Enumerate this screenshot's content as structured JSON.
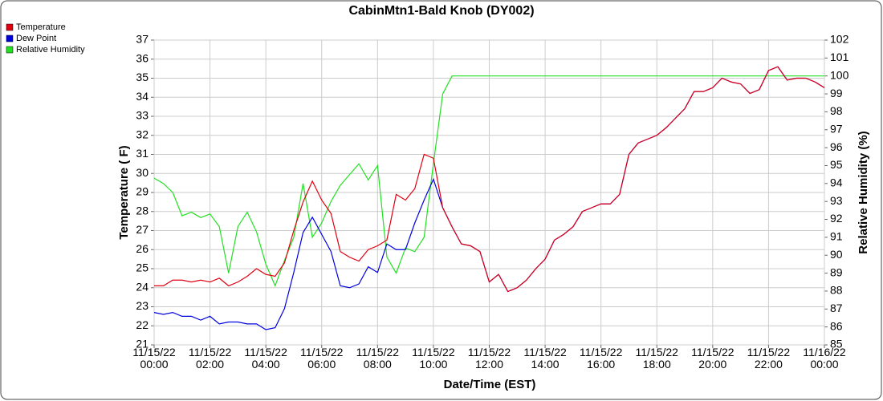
{
  "chart_data": {
    "type": "line",
    "title": "CabinMtn1-Bald Knob (DY002)",
    "x_label": "Date/Time (EST)",
    "y_label": "Temperature ( F)",
    "y2_label": "Relative Humidity (%)",
    "x": [
      0,
      20,
      40,
      60,
      80,
      100,
      120,
      140,
      160,
      180,
      200,
      220,
      240,
      260,
      280,
      300,
      320,
      340,
      360,
      380,
      400,
      420,
      440,
      460,
      480,
      500,
      520,
      540,
      560,
      580,
      600,
      620,
      640,
      660,
      680,
      700,
      720,
      740,
      760,
      780,
      800,
      820,
      840,
      860,
      880,
      900,
      920,
      940,
      960,
      980,
      1000,
      1020,
      1040,
      1060,
      1080,
      1100,
      1120,
      1140,
      1160,
      1180,
      1200,
      1220,
      1240,
      1260,
      1280,
      1300,
      1320,
      1340,
      1360,
      1380,
      1400,
      1420,
      1440
    ],
    "xlim": [
      0,
      1440
    ],
    "xticks": [
      {
        "value": 0,
        "label": "11/15/22 00:00"
      },
      {
        "value": 120,
        "label": "11/15/22 02:00"
      },
      {
        "value": 240,
        "label": "11/15/22 04:00"
      },
      {
        "value": 360,
        "label": "11/15/22 06:00"
      },
      {
        "value": 480,
        "label": "11/15/22 08:00"
      },
      {
        "value": 600,
        "label": "11/15/22 10:00"
      },
      {
        "value": 720,
        "label": "11/15/22 12:00"
      },
      {
        "value": 840,
        "label": "11/15/22 14:00"
      },
      {
        "value": 960,
        "label": "11/15/22 16:00"
      },
      {
        "value": 1080,
        "label": "11/15/22 18:00"
      },
      {
        "value": 1200,
        "label": "11/15/22 20:00"
      },
      {
        "value": 1320,
        "label": "11/15/22 22:00"
      },
      {
        "value": 1440,
        "label": "11/16/22 00:00"
      }
    ],
    "ylim": [
      21,
      37
    ],
    "yticks": [
      21,
      22,
      23,
      24,
      25,
      26,
      27,
      28,
      29,
      30,
      31,
      32,
      33,
      34,
      35,
      36,
      37
    ],
    "y2lim": [
      85,
      102
    ],
    "y2ticks": [
      85,
      86,
      87,
      88,
      89,
      90,
      91,
      92,
      93,
      94,
      95,
      96,
      97,
      98,
      99,
      100,
      101,
      102
    ],
    "grid": true,
    "legend": "top-left",
    "series": [
      {
        "name": "Temperature",
        "color": "#e00010",
        "values": [
          24.1,
          24.1,
          24.4,
          24.4,
          24.3,
          24.4,
          24.3,
          24.5,
          24.1,
          24.3,
          24.6,
          25.0,
          24.7,
          24.6,
          25.3,
          27.0,
          28.5,
          29.6,
          28.6,
          27.9,
          25.9,
          25.6,
          25.4,
          26.0,
          26.2,
          26.5,
          28.9,
          28.6,
          29.2,
          31.0,
          30.8,
          28.2,
          27.2,
          26.3,
          26.2,
          25.9,
          24.3,
          24.7,
          23.8,
          24.0,
          24.4,
          25.0,
          25.5,
          26.5,
          26.8,
          27.2,
          28.0,
          28.2,
          28.4,
          28.4,
          28.9,
          31.0,
          31.6,
          31.8,
          32.0,
          32.4,
          32.9,
          33.4,
          34.3,
          34.3,
          34.5,
          35.0,
          34.8,
          34.7,
          34.2,
          34.4,
          35.4,
          35.6,
          34.9,
          35.0,
          35.0,
          34.8,
          34.5
        ]
      },
      {
        "name": "Dew Point",
        "color": "#0000e0",
        "values": [
          22.7,
          22.6,
          22.7,
          22.5,
          22.5,
          22.3,
          22.5,
          22.1,
          22.2,
          22.2,
          22.1,
          22.1,
          21.8,
          21.9,
          22.9,
          24.8,
          26.9,
          27.7,
          26.8,
          25.9,
          24.1,
          24.0,
          24.2,
          25.1,
          24.8,
          26.3,
          26.0,
          26.0,
          27.4,
          28.6,
          29.7,
          28.2,
          27.2,
          26.3,
          26.2,
          25.9,
          24.3,
          24.7,
          23.8,
          24.0,
          24.4,
          25.0,
          25.5,
          26.5,
          26.8,
          27.2,
          28.0,
          28.2,
          28.4,
          28.4,
          28.9,
          31.0,
          31.6,
          31.8,
          32.0,
          32.4,
          32.9,
          33.4,
          34.3,
          34.3,
          34.5,
          35.0,
          34.8,
          34.7,
          34.2,
          34.4,
          35.4,
          35.6,
          34.9,
          35.0,
          35.0,
          34.8,
          34.5
        ]
      },
      {
        "name": "Relative Humidity",
        "color": "#22e022",
        "axis": "y2",
        "values": [
          94.3,
          94.0,
          93.5,
          92.2,
          92.4,
          92.1,
          92.3,
          91.6,
          89.0,
          91.6,
          92.4,
          91.3,
          89.5,
          88.3,
          89.7,
          91.0,
          94.0,
          91.0,
          91.8,
          93.0,
          93.9,
          94.5,
          95.1,
          94.2,
          95.0,
          89.9,
          89.0,
          90.4,
          90.2,
          91.0,
          95.1,
          99.0,
          100,
          100,
          100,
          100,
          100,
          100,
          100,
          100,
          100,
          100,
          100,
          100,
          100,
          100,
          100,
          100,
          100,
          100,
          100,
          100,
          100,
          100,
          100,
          100,
          100,
          100,
          100,
          100,
          100,
          100,
          100,
          100,
          100,
          100,
          100,
          100,
          100,
          100,
          100,
          100,
          100
        ]
      }
    ]
  }
}
